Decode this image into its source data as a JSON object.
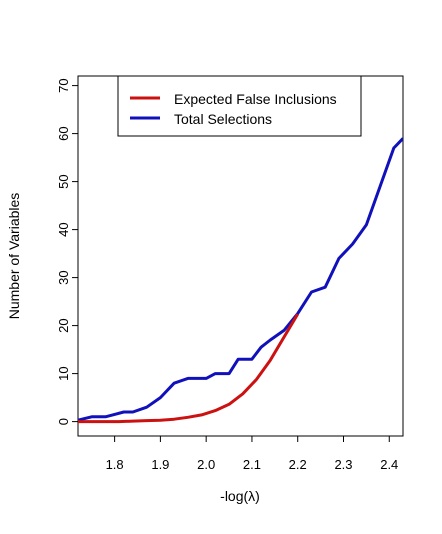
{
  "chart_data": {
    "type": "line",
    "xlabel": "-log(λ)",
    "ylabel": "Number of Variables",
    "xlim": [
      1.72,
      2.43
    ],
    "ylim": [
      -3,
      72
    ],
    "x_ticks": [
      "1.8",
      "1.9",
      "2.0",
      "2.1",
      "2.2",
      "2.3",
      "2.4"
    ],
    "y_ticks": [
      "0",
      "10",
      "20",
      "30",
      "40",
      "50",
      "60",
      "70"
    ],
    "grid": false,
    "legend_position": "top-center",
    "series": [
      {
        "name": "Expected False Inclusions",
        "color": "#cc1111",
        "x": [
          1.72,
          1.75,
          1.78,
          1.81,
          1.84,
          1.87,
          1.9,
          1.93,
          1.96,
          1.99,
          2.02,
          2.05,
          2.08,
          2.11,
          2.14,
          2.17,
          2.2
        ],
        "y": [
          0,
          0,
          0,
          0,
          0.1,
          0.2,
          0.3,
          0.5,
          0.9,
          1.4,
          2.3,
          3.6,
          5.8,
          8.8,
          12.8,
          17.6,
          22.4
        ]
      },
      {
        "name": "Total Selections",
        "color": "#1111bb",
        "x": [
          1.72,
          1.75,
          1.78,
          1.8,
          1.82,
          1.84,
          1.87,
          1.9,
          1.93,
          1.96,
          1.98,
          2.0,
          2.02,
          2.05,
          2.07,
          2.1,
          2.12,
          2.14,
          2.17,
          2.2,
          2.23,
          2.26,
          2.29,
          2.32,
          2.35,
          2.38,
          2.41,
          2.43
        ],
        "y": [
          0.3,
          1,
          1,
          1.5,
          2,
          2,
          3,
          5,
          8,
          9,
          9,
          9,
          10,
          10,
          13,
          13,
          15.5,
          17,
          19,
          22.5,
          27,
          28,
          34,
          37,
          41,
          49,
          57,
          59
        ]
      }
    ]
  }
}
